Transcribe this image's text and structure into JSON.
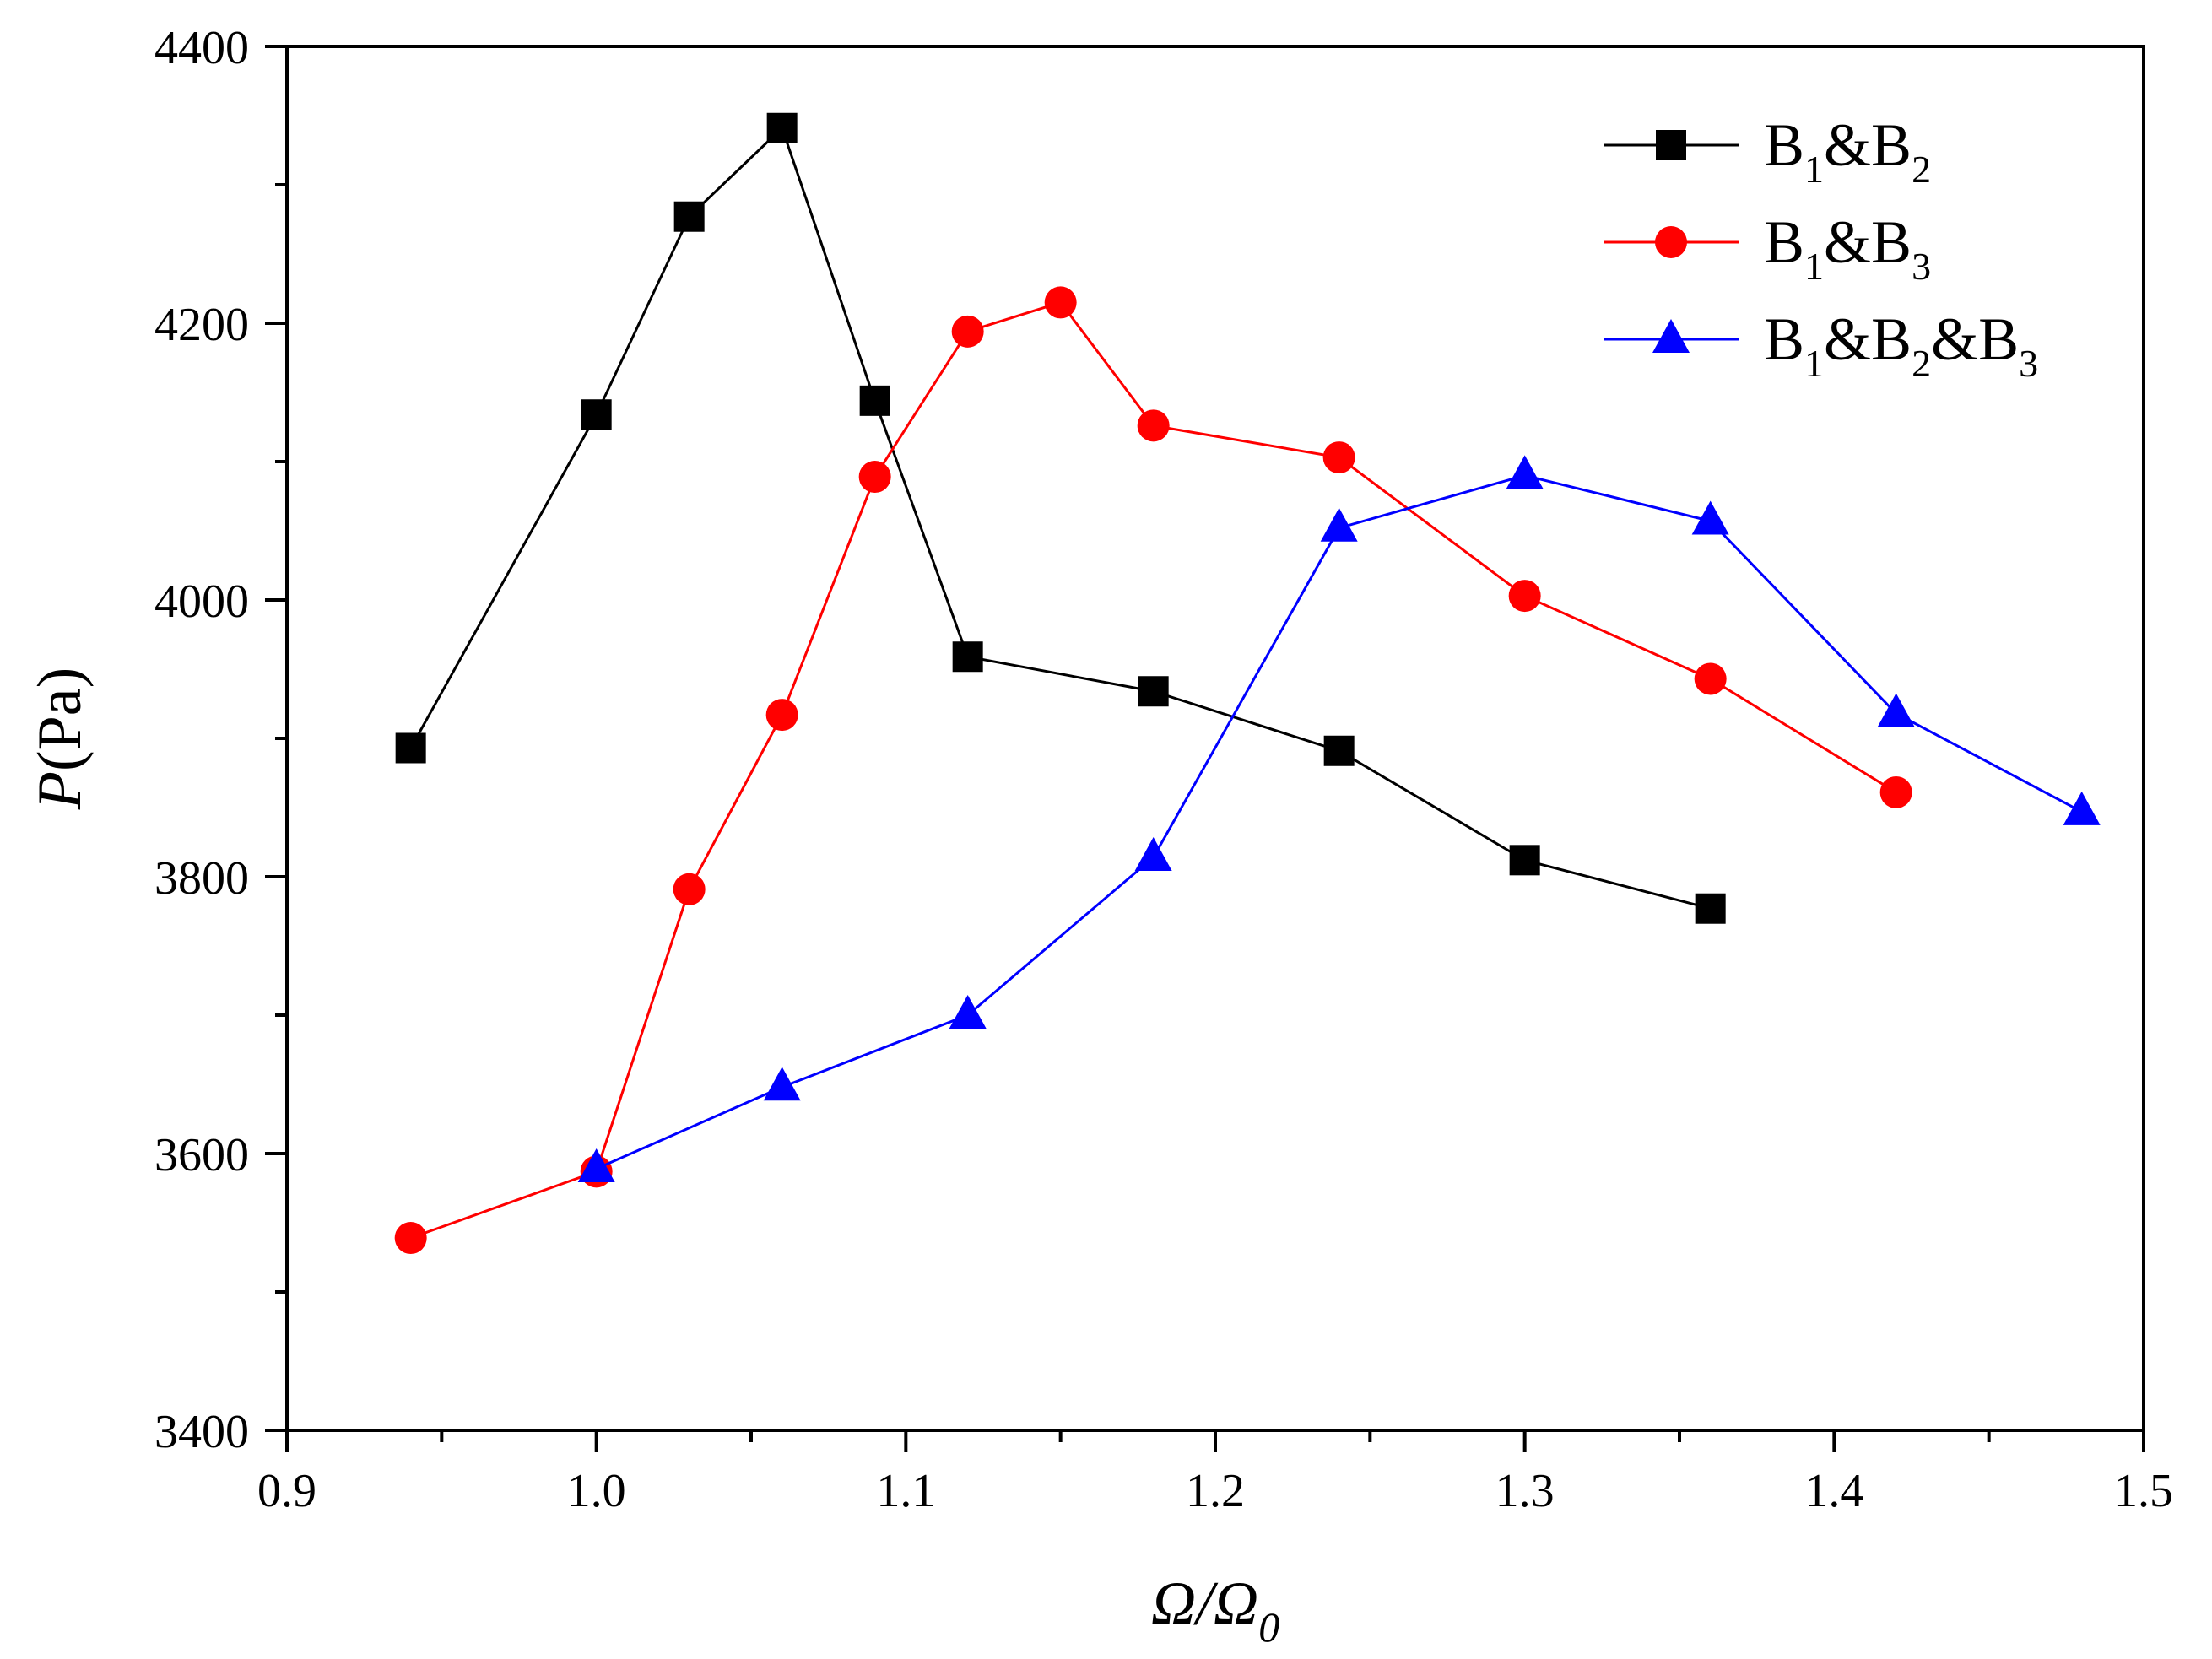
{
  "chart_data": {
    "type": "line",
    "title": "",
    "xlabel": "Ω/Ω0",
    "ylabel": "P(Pa)",
    "xlim": [
      0.9,
      1.5
    ],
    "ylim": [
      3400,
      4400
    ],
    "xticks": [
      0.9,
      1.0,
      1.1,
      1.2,
      1.3,
      1.4,
      1.5
    ],
    "xtick_labels": [
      "0.9",
      "1.0",
      "1.1",
      "1.2",
      "1.3",
      "1.4",
      "1.5"
    ],
    "yticks": [
      3400,
      3600,
      3800,
      4000,
      4200,
      4400
    ],
    "ytick_labels": [
      "3400",
      "3600",
      "3800",
      "4000",
      "4200",
      "4400"
    ],
    "legend_position": "top-right",
    "grid": false,
    "series": [
      {
        "name": "B1&B2",
        "label_parts": [
          "B",
          "1",
          "&B",
          "2"
        ],
        "color": "#000000",
        "marker": "square",
        "x": [
          0.94,
          1.0,
          1.03,
          1.06,
          1.09,
          1.12,
          1.18,
          1.24,
          1.3,
          1.36
        ],
        "y": [
          3893,
          4134,
          4277,
          4341,
          4144,
          3959,
          3934,
          3891,
          3812,
          3777
        ]
      },
      {
        "name": "B1&B3",
        "label_parts": [
          "B",
          "1",
          "&B",
          "3"
        ],
        "color": "#ff0000",
        "marker": "circle",
        "x": [
          0.94,
          1.0,
          1.03,
          1.06,
          1.09,
          1.12,
          1.15,
          1.18,
          1.24,
          1.3,
          1.36,
          1.42
        ],
        "y": [
          3539,
          3587,
          3791,
          3917,
          4089,
          4194,
          4215,
          4126,
          4103,
          4003,
          3943,
          3861
        ]
      },
      {
        "name": "B1&B2&B3",
        "label_parts": [
          "B",
          "1",
          "&B",
          "2",
          "&B",
          "3"
        ],
        "color": "#0000ff",
        "marker": "triangle",
        "x": [
          1.0,
          1.06,
          1.12,
          1.18,
          1.24,
          1.3,
          1.36,
          1.42,
          1.48
        ],
        "y": [
          3589,
          3648,
          3700,
          3814,
          4052,
          4090,
          4057,
          3918,
          3847
        ]
      }
    ]
  }
}
